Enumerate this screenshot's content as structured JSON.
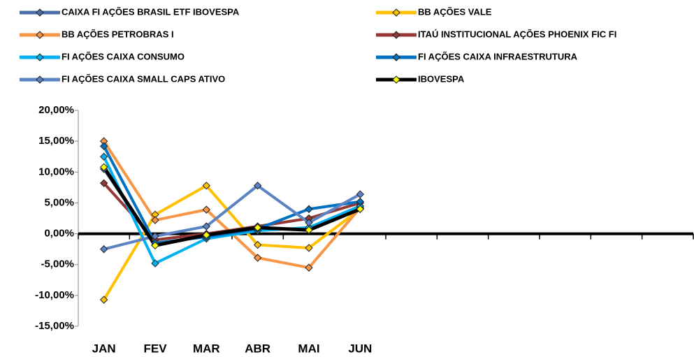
{
  "chart_data": {
    "type": "line",
    "categories": [
      "JAN",
      "FEV",
      "MAR",
      "ABR",
      "MAI",
      "JUN",
      null,
      null,
      null,
      null,
      null,
      null
    ],
    "ylim": [
      -15,
      20
    ],
    "yticks": [
      {
        "value": -15,
        "label": "-15,00%"
      },
      {
        "value": -10,
        "label": "-10,00%"
      },
      {
        "value": -5,
        "label": "-5,00%"
      },
      {
        "value": 0,
        "label": "0,00%"
      },
      {
        "value": 5,
        "label": "5,00%"
      },
      {
        "value": 10,
        "label": "10,00%"
      },
      {
        "value": 15,
        "label": "15,00%"
      },
      {
        "value": 20,
        "label": "20,00%"
      }
    ],
    "legend": "top",
    "series": [
      {
        "name": "CAIXA FI AÇÕES BRASIL ETF IBOVESPA",
        "color": "#4a6ea8",
        "values": [
          10.5,
          -1.8,
          -0.3,
          1.0,
          0.6,
          4.2,
          null,
          null,
          null,
          null,
          null,
          null
        ]
      },
      {
        "name": "BB AÇÕES VALE",
        "color": "#ffc000",
        "values": [
          -10.7,
          3.1,
          7.8,
          -1.8,
          -2.3,
          4.0,
          null,
          null,
          null,
          null,
          null,
          null
        ]
      },
      {
        "name": "BB AÇÕES PETROBRAS I",
        "color": "#f79646",
        "values": [
          15.0,
          2.2,
          3.9,
          -3.9,
          -5.5,
          4.2,
          null,
          null,
          null,
          null,
          null,
          null
        ]
      },
      {
        "name": "ITAÚ INSTITUCIONAL AÇÕES PHOENIX FIC FI",
        "color": "#953735",
        "values": [
          8.2,
          -1.0,
          0.0,
          1.2,
          2.5,
          5.0,
          null,
          null,
          null,
          null,
          null,
          null
        ]
      },
      {
        "name": "FI  AÇÕES CAIXA CONSUMO",
        "color": "#00b0f0",
        "values": [
          12.5,
          -4.8,
          -0.8,
          0.5,
          1.0,
          4.5,
          null,
          null,
          null,
          null,
          null,
          null
        ]
      },
      {
        "name": "FI  AÇÕES CAIXA INFRAESTRUTURA",
        "color": "#0070c0",
        "values": [
          14.2,
          -1.5,
          -0.5,
          0.8,
          4.0,
          5.2,
          null,
          null,
          null,
          null,
          null,
          null
        ]
      },
      {
        "name": "FI  AÇÕES CAIXA SMALL CAPS ATIVO",
        "color": "#5b83c4",
        "values": [
          -2.5,
          -0.4,
          1.2,
          7.8,
          1.8,
          6.4,
          null,
          null,
          null,
          null,
          null,
          null
        ]
      },
      {
        "name": "IBOVESPA",
        "color": "#000000",
        "marker_color": "#ffff00",
        "values": [
          10.8,
          -1.9,
          -0.2,
          1.0,
          0.6,
          4.0,
          null,
          null,
          null,
          null,
          null,
          null
        ]
      }
    ]
  }
}
